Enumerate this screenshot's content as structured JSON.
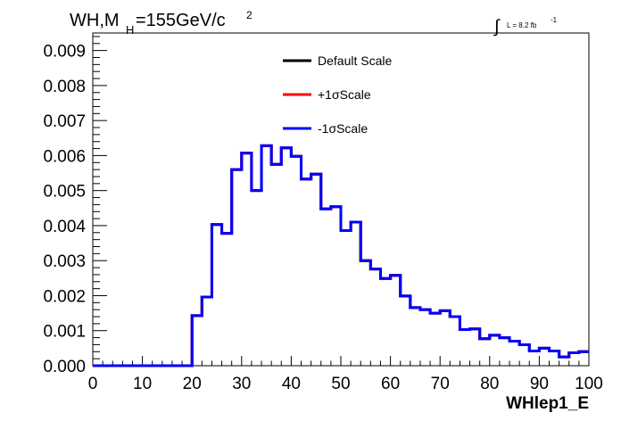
{
  "chart_data": {
    "type": "line",
    "title": {
      "main": "WH,M",
      "sub": "H",
      "rest": "=155GeV/c",
      "sup": "2"
    },
    "lumi": {
      "integral": "∫",
      "text": "L = 8.2 fb",
      "sup": "-1"
    },
    "xlabel": "WHlep1_E",
    "ylabel": "",
    "xlim": [
      0,
      100
    ],
    "ylim": [
      0,
      0.0095
    ],
    "x_ticks": [
      "0",
      "10",
      "20",
      "30",
      "40",
      "50",
      "60",
      "70",
      "80",
      "90",
      "100"
    ],
    "y_ticks": [
      "0.000",
      "0.001",
      "0.002",
      "0.003",
      "0.004",
      "0.005",
      "0.006",
      "0.007",
      "0.008",
      "0.009"
    ],
    "bin_edges": [
      0,
      2,
      4,
      6,
      8,
      10,
      12,
      14,
      16,
      18,
      20,
      22,
      24,
      26,
      28,
      30,
      32,
      34,
      36,
      38,
      40,
      42,
      44,
      46,
      48,
      50,
      52,
      54,
      56,
      58,
      60,
      62,
      64,
      66,
      68,
      70,
      72,
      74,
      76,
      78,
      80,
      82,
      84,
      86,
      88,
      90,
      92,
      94,
      96,
      98,
      100
    ],
    "series": [
      {
        "name": "Default Scale",
        "color": "#000000",
        "values": [
          0,
          0,
          0,
          0,
          0,
          0,
          0,
          0,
          0,
          0,
          0.00143,
          0.00196,
          0.00403,
          0.00378,
          0.0056,
          0.00607,
          0.005,
          0.00628,
          0.00575,
          0.00622,
          0.00598,
          0.00533,
          0.00547,
          0.00448,
          0.00454,
          0.00386,
          0.0041,
          0.003,
          0.00276,
          0.00249,
          0.00258,
          0.00199,
          0.00166,
          0.0016,
          0.0015,
          0.00157,
          0.0014,
          0.00103,
          0.00105,
          0.00077,
          0.00087,
          0.0008,
          0.0007,
          0.0006,
          0.00042,
          0.0005,
          0.00042,
          0.00025,
          0.00037,
          0.0004
        ]
      },
      {
        "name": "+1σScale",
        "color": "#ff0000",
        "values": [
          0,
          0,
          0,
          0,
          0,
          0,
          0,
          0,
          0,
          0,
          0.00143,
          0.00196,
          0.00403,
          0.00378,
          0.0056,
          0.00607,
          0.005,
          0.00628,
          0.00575,
          0.00622,
          0.00598,
          0.00533,
          0.00547,
          0.00448,
          0.00454,
          0.00386,
          0.0041,
          0.003,
          0.00276,
          0.00249,
          0.00258,
          0.00199,
          0.00166,
          0.0016,
          0.0015,
          0.00157,
          0.0014,
          0.00103,
          0.00105,
          0.00077,
          0.00087,
          0.0008,
          0.0007,
          0.0006,
          0.00042,
          0.0005,
          0.00042,
          0.00025,
          0.00037,
          0.0004
        ]
      },
      {
        "name": "-1σScale",
        "color": "#0000ff",
        "values": [
          0,
          0,
          0,
          0,
          0,
          0,
          0,
          0,
          0,
          0,
          0.00143,
          0.00196,
          0.00403,
          0.00378,
          0.0056,
          0.00607,
          0.005,
          0.00628,
          0.00575,
          0.00622,
          0.00598,
          0.00533,
          0.00547,
          0.00448,
          0.00454,
          0.00386,
          0.0041,
          0.003,
          0.00276,
          0.00249,
          0.00258,
          0.00199,
          0.00166,
          0.0016,
          0.0015,
          0.00157,
          0.0014,
          0.00103,
          0.00105,
          0.00077,
          0.00087,
          0.0008,
          0.0007,
          0.0006,
          0.00042,
          0.0005,
          0.00042,
          0.00025,
          0.00037,
          0.0004
        ]
      }
    ],
    "legend_position": "top-center",
    "grid": false
  }
}
